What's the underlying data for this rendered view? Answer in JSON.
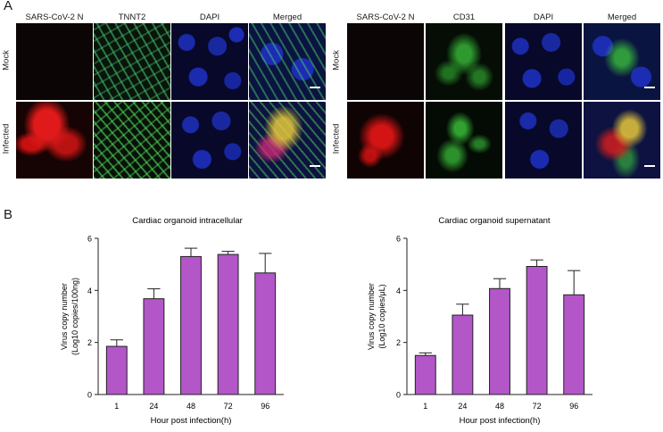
{
  "panelA": {
    "letter": "A",
    "left": {
      "columns": [
        "SARS-CoV-2 N",
        "TNNT2",
        "DAPI",
        "Merged"
      ],
      "rows": [
        "Mock",
        "Infected"
      ]
    },
    "right": {
      "columns": [
        "SARS-CoV-2 N",
        "CD31",
        "DAPI",
        "Merged"
      ],
      "rows": [
        "Mock",
        "Infected"
      ]
    }
  },
  "panelB": {
    "letter": "B"
  },
  "chart_data": [
    {
      "type": "bar",
      "title": "Cardiac organoid intracellular",
      "xlabel": "Hour post infection(h)",
      "ylabel_line1": "Virus copy  number",
      "ylabel_line2": "(Log10 copies/100ng)",
      "categories": [
        "1",
        "24",
        "48",
        "72",
        "96"
      ],
      "values": [
        1.85,
        3.68,
        5.3,
        5.38,
        4.67
      ],
      "errors": [
        0.25,
        0.38,
        0.32,
        0.12,
        0.75
      ],
      "ylim": [
        0,
        6
      ],
      "yticks": [
        "0",
        "2",
        "4",
        "6"
      ],
      "bar_color": "#b356c8"
    },
    {
      "type": "bar",
      "title": "Cardiac organoid supernatant",
      "xlabel": "Hour post infection(h)",
      "ylabel_line1": "Virus copy  number",
      "ylabel_line2": "(Log10 copies/μL)",
      "categories": [
        "1",
        "24",
        "48",
        "72",
        "96"
      ],
      "values": [
        1.5,
        3.05,
        4.07,
        4.92,
        3.83
      ],
      "errors": [
        0.1,
        0.42,
        0.38,
        0.25,
        0.93
      ],
      "ylim": [
        0,
        6
      ],
      "yticks": [
        "0",
        "2",
        "4",
        "6"
      ],
      "bar_color": "#b356c8"
    }
  ]
}
